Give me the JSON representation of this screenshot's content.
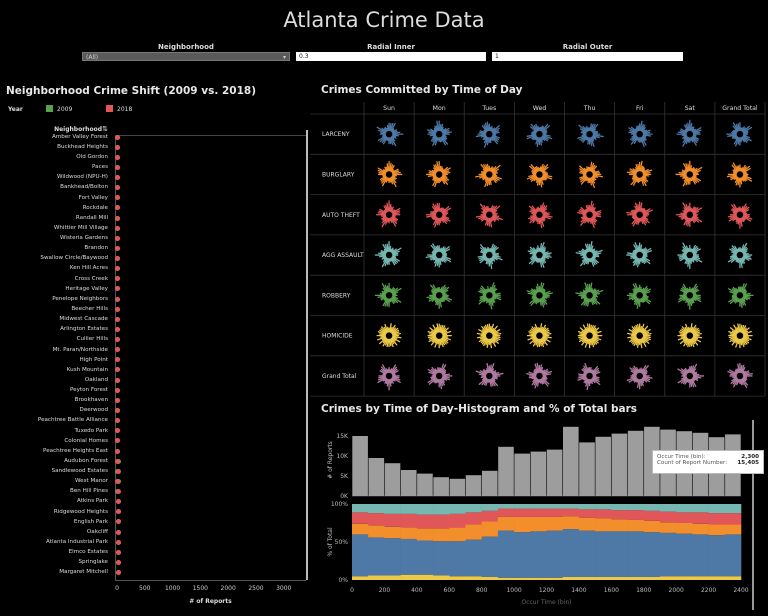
{
  "title": "Atlanta Crime Data",
  "filters": {
    "neighborhood": {
      "label": "Neighborhood",
      "value": "(All)"
    },
    "radial_inner": {
      "label": "Radial Inner",
      "value": "0.3"
    },
    "radial_outer": {
      "label": "Radial Outer",
      "value": "1"
    }
  },
  "colors": {
    "y2009": "#59a14f",
    "y2018": "#e15759",
    "grey": "#9d9d9d",
    "larceny": "#4e79a7",
    "burglary": "#f28e2b",
    "auto_theft": "#e15759",
    "agg_assault": "#76b7b2",
    "robbery": "#59a14f",
    "homicide": "#edc948",
    "grand_total": "#b07aa1"
  },
  "shift": {
    "title": "Neighborhood Crime Shift (2009 vs. 2018)",
    "legend_label": "Year",
    "legend": [
      {
        "label": "2009"
      },
      {
        "label": "2018"
      }
    ],
    "header": "Neighborhood",
    "x_label": "# of Reports",
    "neighborhoods": [
      "Amber Valley Forest",
      "Buckhead Heights",
      "Old Gordon",
      "Paces",
      "Wildwood (NPU-H)",
      "Bankhead/Bolton",
      "Fort Valley",
      "Rockdale",
      "Randall Mill",
      "Whittier Mill Village",
      "Wisteria Gardens",
      "Brandon",
      "Swallow Circle/Baywood",
      "Ken Hill Acres",
      "Cross Creek",
      "Heritage Valley",
      "Penelope Neighbors",
      "Beecher Hills",
      "Midwest Cascade",
      "Arlington Estates",
      "Cullier Hills",
      "Mt. Paran/Northside",
      "High Point",
      "Kush Mountain",
      "Oakland",
      "Peyton Forest",
      "Brookhaven",
      "Deerwood",
      "Peachtree Battle Alliance",
      "Tuxedo Park",
      "Colonial Homes",
      "Peachtree Heights East",
      "Audubon Forest",
      "Sandlewood Estates",
      "West Manor",
      "Ben Hill Pines",
      "Atkins Park",
      "Ridgewood Heights",
      "English Park",
      "Oakcliff",
      "Atlanta Industrial Park",
      "Elmco Estates",
      "Springlake",
      "Margaret Mitchell"
    ]
  },
  "chart_data": [
    {
      "type": "scatter",
      "title": "Neighborhood Crime Shift (2009 vs. 2018)",
      "xlabel": "# of Reports",
      "xlim": [
        0,
        3400
      ],
      "xticks": [
        "0",
        "500",
        "1000",
        "1500",
        "2000",
        "2500",
        "3000"
      ],
      "series": [
        {
          "name": "2009",
          "values": [
            2,
            3,
            4,
            3,
            6,
            5,
            7,
            4,
            5,
            4,
            6,
            5,
            7,
            6,
            8,
            9,
            7,
            10,
            12,
            9,
            11,
            10,
            12,
            14,
            11,
            13,
            15,
            12,
            14,
            13,
            15,
            16,
            18,
            17,
            19,
            16,
            18,
            20,
            21,
            19,
            22,
            20,
            23,
            24
          ]
        },
        {
          "name": "2018",
          "values": [
            1,
            2,
            2,
            4,
            3,
            6,
            8,
            5,
            4,
            6,
            5,
            8,
            6,
            9,
            7,
            8,
            10,
            9,
            8,
            12,
            10,
            13,
            11,
            10,
            14,
            12,
            13,
            16,
            15,
            14,
            17,
            15,
            16,
            19,
            17,
            20,
            19,
            18,
            22,
            23,
            21,
            24,
            22,
            26
          ]
        }
      ]
    },
    {
      "type": "heatmap",
      "title": "Crimes Committed by Time of Day",
      "columns": [
        "Sun",
        "Mon",
        "Tues",
        "Wed",
        "Thu",
        "Fri",
        "Sat",
        "Grand Total"
      ],
      "rows": [
        "LARCENY",
        "BURGLARY",
        "AUTO THEFT",
        "AGG ASSAULT",
        "ROBBERY",
        "HOMICIDE",
        "Grand Total"
      ]
    },
    {
      "type": "bar",
      "title": "Crimes by Time of Day-Histogram and % of Total bars",
      "xlabel": "Occur Time (bin)",
      "ylabel": "# of Reports",
      "xlim": [
        0,
        2400
      ],
      "ylim": [
        0,
        18000
      ],
      "xticks": [
        "0",
        "200",
        "400",
        "600",
        "800",
        "1000",
        "1200",
        "1400",
        "1600",
        "1800",
        "2000",
        "2200",
        "2400"
      ],
      "yticks": [
        "0K",
        "5K",
        "10K",
        "15K"
      ],
      "categories": [
        0,
        100,
        200,
        300,
        400,
        500,
        600,
        700,
        800,
        900,
        1000,
        1100,
        1200,
        1300,
        1400,
        1500,
        1600,
        1700,
        1800,
        1900,
        2000,
        2100,
        2200,
        2300
      ],
      "values": [
        15000,
        9500,
        8200,
        6500,
        5600,
        4700,
        4300,
        5200,
        6300,
        12300,
        10600,
        11100,
        11600,
        17300,
        13400,
        14800,
        15600,
        16300,
        17300,
        16600,
        16200,
        15800,
        14700,
        15405
      ],
      "tooltip": {
        "occur_label": "Occur Time (bin):",
        "occur_value": "2,300",
        "count_label": "Count of Report Number:",
        "count_value": "15,405"
      }
    },
    {
      "type": "bar",
      "title": "% of Total",
      "ylabel": "% of Total",
      "yticks": [
        "0%",
        "50%",
        "100%"
      ],
      "series_order": [
        "homicide",
        "larceny",
        "burglary",
        "auto_theft",
        "agg_assault"
      ],
      "stacks": [
        [
          0.05,
          0.55,
          0.14,
          0.15,
          0.11
        ],
        [
          0.06,
          0.5,
          0.16,
          0.16,
          0.12
        ],
        [
          0.06,
          0.49,
          0.15,
          0.17,
          0.13
        ],
        [
          0.07,
          0.47,
          0.15,
          0.18,
          0.13
        ],
        [
          0.07,
          0.45,
          0.16,
          0.18,
          0.14
        ],
        [
          0.06,
          0.45,
          0.17,
          0.18,
          0.14
        ],
        [
          0.05,
          0.46,
          0.18,
          0.18,
          0.13
        ],
        [
          0.05,
          0.48,
          0.2,
          0.16,
          0.11
        ],
        [
          0.04,
          0.53,
          0.2,
          0.14,
          0.09
        ],
        [
          0.03,
          0.62,
          0.18,
          0.11,
          0.06
        ],
        [
          0.03,
          0.6,
          0.2,
          0.11,
          0.06
        ],
        [
          0.03,
          0.61,
          0.19,
          0.11,
          0.06
        ],
        [
          0.03,
          0.62,
          0.18,
          0.11,
          0.06
        ],
        [
          0.04,
          0.63,
          0.17,
          0.1,
          0.06
        ],
        [
          0.04,
          0.61,
          0.17,
          0.11,
          0.07
        ],
        [
          0.04,
          0.6,
          0.17,
          0.12,
          0.07
        ],
        [
          0.04,
          0.6,
          0.16,
          0.12,
          0.08
        ],
        [
          0.04,
          0.6,
          0.15,
          0.13,
          0.08
        ],
        [
          0.04,
          0.59,
          0.15,
          0.13,
          0.09
        ],
        [
          0.05,
          0.57,
          0.14,
          0.14,
          0.1
        ],
        [
          0.05,
          0.56,
          0.14,
          0.14,
          0.11
        ],
        [
          0.05,
          0.55,
          0.14,
          0.15,
          0.11
        ],
        [
          0.05,
          0.54,
          0.14,
          0.15,
          0.12
        ],
        [
          0.05,
          0.55,
          0.13,
          0.15,
          0.12
        ]
      ]
    }
  ]
}
